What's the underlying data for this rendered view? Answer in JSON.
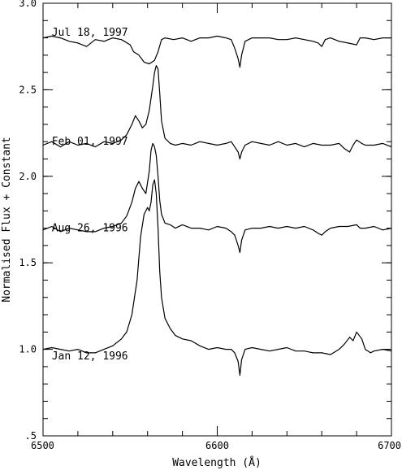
{
  "chart_data": {
    "type": "line",
    "title": "",
    "xlabel": "Wavelength (Å)",
    "ylabel": "Normalised Flux + Constant",
    "xlim": [
      6500,
      6700
    ],
    "ylim": [
      0.5,
      3.0
    ],
    "grid": false,
    "x_ticks": [
      {
        "value": 6500,
        "label": "6500"
      },
      {
        "value": 6600,
        "label": "6600"
      },
      {
        "value": 6700,
        "label": "6700"
      }
    ],
    "x_minor_step": 20,
    "y_ticks": [
      {
        "value": 0.5,
        "label": ".5"
      },
      {
        "value": 1.0,
        "label": "1.0"
      },
      {
        "value": 1.5,
        "label": "1.5"
      },
      {
        "value": 2.0,
        "label": "2.0"
      },
      {
        "value": 2.5,
        "label": "2.5"
      },
      {
        "value": 3.0,
        "label": "3.0"
      }
    ],
    "y_minor_step": 0.1,
    "series": [
      {
        "name": "Jul 18, 1997",
        "label_pos": [
          6505,
          2.83
        ],
        "x": [
          6500,
          6505,
          6510,
          6515,
          6520,
          6525,
          6530,
          6535,
          6540,
          6545,
          6550,
          6552,
          6555,
          6558,
          6561,
          6564,
          6566,
          6568,
          6570,
          6575,
          6580,
          6585,
          6590,
          6595,
          6600,
          6605,
          6608,
          6610,
          6612,
          6613,
          6614,
          6616,
          6620,
          6625,
          6630,
          6635,
          6640,
          6645,
          6650,
          6655,
          6658,
          6660,
          6662,
          6665,
          6670,
          6675,
          6680,
          6682,
          6685,
          6690,
          6695,
          6700
        ],
        "y": [
          2.8,
          2.81,
          2.8,
          2.78,
          2.77,
          2.75,
          2.79,
          2.78,
          2.8,
          2.79,
          2.76,
          2.72,
          2.7,
          2.66,
          2.65,
          2.67,
          2.72,
          2.79,
          2.8,
          2.79,
          2.8,
          2.78,
          2.8,
          2.8,
          2.81,
          2.8,
          2.79,
          2.74,
          2.68,
          2.63,
          2.7,
          2.78,
          2.8,
          2.8,
          2.8,
          2.79,
          2.79,
          2.8,
          2.79,
          2.78,
          2.77,
          2.75,
          2.79,
          2.8,
          2.78,
          2.77,
          2.76,
          2.8,
          2.8,
          2.79,
          2.8,
          2.8
        ]
      },
      {
        "name": "Feb 01, 1997",
        "label_pos": [
          6505,
          2.2
        ],
        "x": [
          6500,
          6505,
          6510,
          6515,
          6520,
          6525,
          6530,
          6535,
          6540,
          6545,
          6548,
          6551,
          6553,
          6555,
          6557,
          6559,
          6561,
          6563,
          6564,
          6565,
          6566,
          6567,
          6568,
          6570,
          6573,
          6576,
          6580,
          6585,
          6590,
          6595,
          6600,
          6605,
          6608,
          6610,
          6612,
          6613,
          6614,
          6616,
          6620,
          6625,
          6630,
          6635,
          6640,
          6645,
          6650,
          6655,
          6660,
          6665,
          6670,
          6673,
          6676,
          6678,
          6680,
          6683,
          6685,
          6690,
          6695,
          6700
        ],
        "y": [
          2.18,
          2.2,
          2.17,
          2.2,
          2.18,
          2.19,
          2.17,
          2.2,
          2.19,
          2.21,
          2.24,
          2.3,
          2.35,
          2.32,
          2.28,
          2.3,
          2.38,
          2.52,
          2.6,
          2.64,
          2.62,
          2.48,
          2.32,
          2.22,
          2.19,
          2.18,
          2.19,
          2.18,
          2.2,
          2.19,
          2.18,
          2.19,
          2.2,
          2.17,
          2.14,
          2.1,
          2.14,
          2.18,
          2.2,
          2.19,
          2.18,
          2.2,
          2.18,
          2.19,
          2.17,
          2.19,
          2.18,
          2.18,
          2.19,
          2.16,
          2.14,
          2.18,
          2.21,
          2.19,
          2.18,
          2.18,
          2.19,
          2.17
        ]
      },
      {
        "name": "Aug 26, 1996",
        "label_pos": [
          6505,
          1.7
        ],
        "x": [
          6500,
          6505,
          6510,
          6515,
          6520,
          6525,
          6530,
          6535,
          6540,
          6545,
          6548,
          6551,
          6553,
          6555,
          6557,
          6559,
          6561,
          6562,
          6563,
          6564,
          6565,
          6566,
          6567,
          6568,
          6570,
          6573,
          6576,
          6580,
          6585,
          6590,
          6595,
          6600,
          6605,
          6608,
          6610,
          6612,
          6613,
          6614,
          6616,
          6620,
          6625,
          6630,
          6635,
          6640,
          6645,
          6650,
          6655,
          6658,
          6660,
          6662,
          6665,
          6670,
          6675,
          6680,
          6682,
          6685,
          6690,
          6695,
          6700
        ],
        "y": [
          1.69,
          1.71,
          1.68,
          1.7,
          1.69,
          1.68,
          1.68,
          1.7,
          1.71,
          1.73,
          1.77,
          1.85,
          1.93,
          1.97,
          1.93,
          1.9,
          2.03,
          2.15,
          2.19,
          2.17,
          2.12,
          2.0,
          1.86,
          1.78,
          1.73,
          1.72,
          1.7,
          1.72,
          1.7,
          1.7,
          1.69,
          1.71,
          1.7,
          1.68,
          1.66,
          1.6,
          1.56,
          1.63,
          1.69,
          1.7,
          1.7,
          1.71,
          1.7,
          1.71,
          1.7,
          1.71,
          1.69,
          1.67,
          1.66,
          1.68,
          1.7,
          1.71,
          1.71,
          1.72,
          1.7,
          1.7,
          1.71,
          1.69,
          1.7
        ]
      },
      {
        "name": "Jan 12, 1996",
        "label_pos": [
          6505,
          0.96
        ],
        "x": [
          6500,
          6505,
          6510,
          6515,
          6520,
          6525,
          6530,
          6535,
          6540,
          6545,
          6548,
          6551,
          6554,
          6556,
          6558,
          6560,
          6561,
          6562,
          6563,
          6564,
          6565,
          6566,
          6567,
          6568,
          6570,
          6573,
          6576,
          6580,
          6585,
          6590,
          6595,
          6600,
          6605,
          6608,
          6610,
          6612,
          6613,
          6614,
          6616,
          6620,
          6625,
          6630,
          6635,
          6640,
          6645,
          6650,
          6655,
          6660,
          6665,
          6670,
          6673,
          6676,
          6678,
          6680,
          6683,
          6685,
          6688,
          6690,
          6695,
          6700
        ],
        "y": [
          1.0,
          1.01,
          1.0,
          0.99,
          1.0,
          0.98,
          0.98,
          1.0,
          1.02,
          1.06,
          1.1,
          1.2,
          1.4,
          1.65,
          1.78,
          1.82,
          1.8,
          1.85,
          1.95,
          1.98,
          1.9,
          1.7,
          1.45,
          1.3,
          1.18,
          1.12,
          1.08,
          1.06,
          1.05,
          1.02,
          1.0,
          1.01,
          1.0,
          1.0,
          0.98,
          0.93,
          0.85,
          0.94,
          1.0,
          1.01,
          1.0,
          0.99,
          1.0,
          1.01,
          0.99,
          0.99,
          0.98,
          0.98,
          0.97,
          1.0,
          1.03,
          1.07,
          1.05,
          1.1,
          1.06,
          1.0,
          0.98,
          0.99,
          1.0,
          0.99
        ]
      }
    ]
  }
}
